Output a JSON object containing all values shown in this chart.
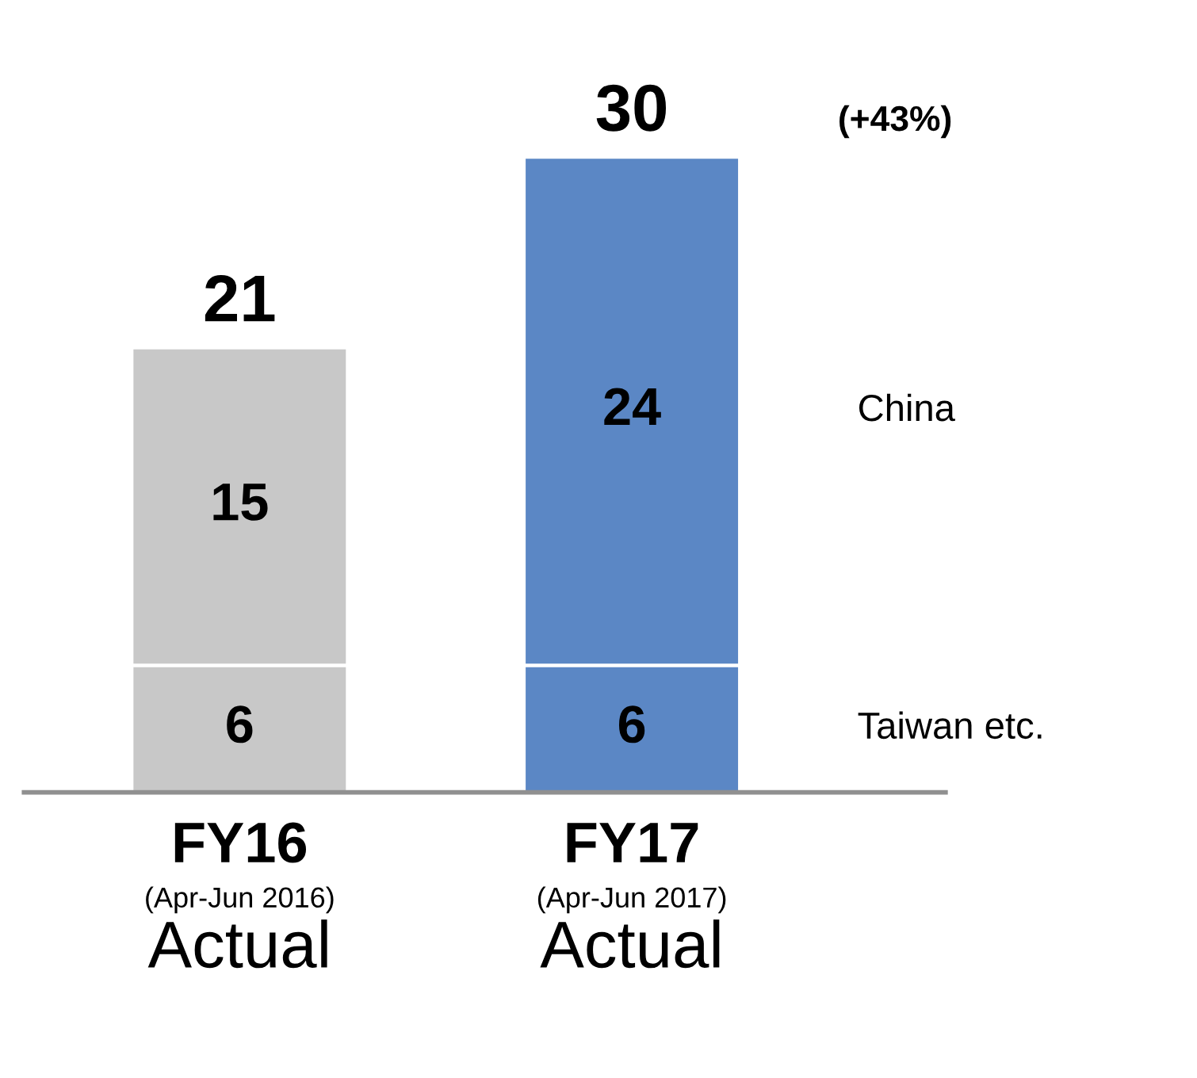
{
  "chart_data": {
    "type": "bar",
    "stacked": true,
    "categories": [
      "FY16\n(Apr-Jun 2016)\nActual",
      "FY17\n(Apr-Jun 2017)\nActual"
    ],
    "series": [
      {
        "name": "Taiwan etc.",
        "colors": [
          "#c8c8c8",
          "#5b87c5"
        ],
        "values": [
          6,
          6
        ]
      },
      {
        "name": "China",
        "colors": [
          "#c8c8c8",
          "#5b87c5"
        ],
        "values": [
          15,
          24
        ]
      }
    ],
    "data_labels": true,
    "totals": [
      "21",
      "30"
    ],
    "annotations": [
      "(+43%)"
    ],
    "legend": false
  }
}
